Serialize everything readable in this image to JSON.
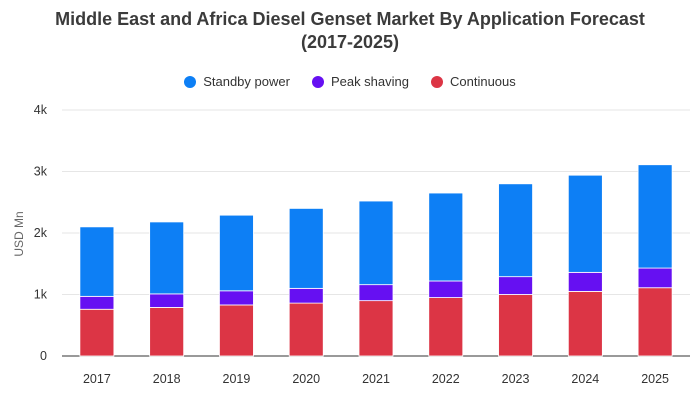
{
  "chart_data": {
    "type": "bar",
    "stacked": true,
    "title_line1": "Middle East and Africa Diesel Genset Market By Application Forecast",
    "title_line2": "(2017-2025)",
    "xlabel": "",
    "ylabel": "USD Mn",
    "ylim": [
      0,
      4000
    ],
    "yticks": [
      0,
      1000,
      2000,
      3000,
      4000
    ],
    "ytick_labels": [
      "0",
      "1k",
      "2k",
      "3k",
      "4k"
    ],
    "categories": [
      "2017",
      "2018",
      "2019",
      "2020",
      "2021",
      "2022",
      "2023",
      "2024",
      "2025"
    ],
    "legend_position": "top-center",
    "series": [
      {
        "name": "Continuous",
        "color": "#dc3545",
        "values": [
          760,
          790,
          830,
          860,
          900,
          950,
          1000,
          1050,
          1110
        ]
      },
      {
        "name": "Peak shaving",
        "color": "#6610f2",
        "values": [
          210,
          220,
          230,
          240,
          260,
          270,
          290,
          310,
          320
        ]
      },
      {
        "name": "Standby power",
        "color": "#0d7ff5",
        "values": [
          1130,
          1170,
          1230,
          1300,
          1360,
          1430,
          1510,
          1580,
          1680
        ]
      }
    ]
  },
  "legend": [
    {
      "label": "Standby power",
      "color": "#0d7ff5"
    },
    {
      "label": "Peak shaving",
      "color": "#6610f2"
    },
    {
      "label": "Continuous",
      "color": "#dc3545"
    }
  ]
}
